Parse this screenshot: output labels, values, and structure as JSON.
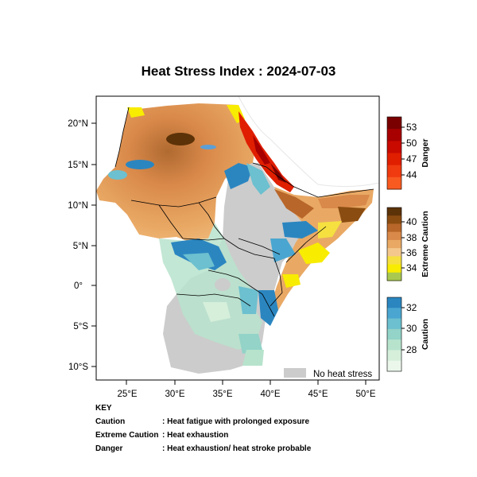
{
  "title": "Heat Stress Index : 2024-07-03",
  "axes": {
    "lat_labels": [
      "20°N",
      "15°N",
      "10°N",
      "5°N",
      "0°",
      "5°S",
      "10°S"
    ],
    "lon_labels": [
      "25°E",
      "30°E",
      "35°E",
      "40°E",
      "45°E",
      "50°E"
    ]
  },
  "legend_no_stress": "No heat stress",
  "colorbars": [
    {
      "title": "Danger",
      "ticks": [
        "53",
        "50",
        "47",
        "44"
      ],
      "colors": [
        "#7a0000",
        "#a80000",
        "#c80a00",
        "#e01e00",
        "#f03a10",
        "#f85a20"
      ]
    },
    {
      "title": "Extreme Caution",
      "ticks": [
        "40",
        "38",
        "36",
        "34"
      ],
      "colors": [
        "#5c3208",
        "#8a4c10",
        "#b8662a",
        "#d9894a",
        "#e9a965",
        "#f4c88d",
        "#f5e040",
        "#f8ec00",
        "#a8c850"
      ]
    },
    {
      "title": "Caution",
      "ticks": [
        "32",
        "30",
        "28"
      ],
      "colors": [
        "#2b86c0",
        "#4aa6d0",
        "#6cc0cf",
        "#93d3c8",
        "#b7e3cc",
        "#d5efdb",
        "#ecf7ec"
      ]
    }
  ],
  "colors": {
    "no_stress": "#cccccc",
    "danger": "#e01e00",
    "extreme": "#d9894a",
    "caution": "#2b86c0"
  },
  "key": {
    "heading": "KEY",
    "rows": [
      {
        "term": "Caution",
        "desc": ": Heat fatigue with prolonged exposure"
      },
      {
        "term": "Extreme Caution",
        "desc": ": Heat exhaustion"
      },
      {
        "term": "Danger",
        "desc": ": Heat exhaustion/ heat stroke probable"
      }
    ]
  }
}
